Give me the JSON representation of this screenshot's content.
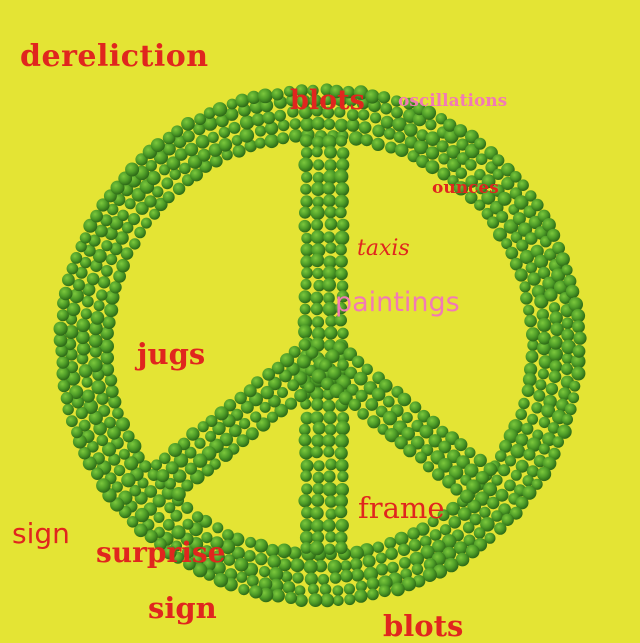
{
  "background_color": "#e4e434",
  "symbol": {
    "icon": "peace-sign-icon",
    "pea_color": "#4f9e28",
    "pea_highlight": "#7cc83d",
    "pea_shadow": "#2d6a17"
  },
  "words": [
    {
      "id": "dereliction",
      "text": "dereliction",
      "color": "#e0261e"
    },
    {
      "id": "blots-top",
      "text": "blots",
      "color": "#e0261e"
    },
    {
      "id": "oscillations",
      "text": "oscillations",
      "color": "#f27ab5"
    },
    {
      "id": "ounces",
      "text": "ounces",
      "color": "#e0261e"
    },
    {
      "id": "taxis",
      "text": "taxis",
      "color": "#e0261e"
    },
    {
      "id": "paintings",
      "text": "paintings",
      "color": "#f27ab5"
    },
    {
      "id": "jugs",
      "text": "jugs",
      "color": "#e0261e"
    },
    {
      "id": "frame",
      "text": "frame",
      "color": "#e0261e"
    },
    {
      "id": "sign-left",
      "text": "sign",
      "color": "#e0261e"
    },
    {
      "id": "surprise",
      "text": "surprise",
      "color": "#e0261e"
    },
    {
      "id": "sign-bottom",
      "text": "sign",
      "color": "#e0261e"
    },
    {
      "id": "blots-bottom",
      "text": "blots",
      "color": "#e0261e"
    }
  ]
}
